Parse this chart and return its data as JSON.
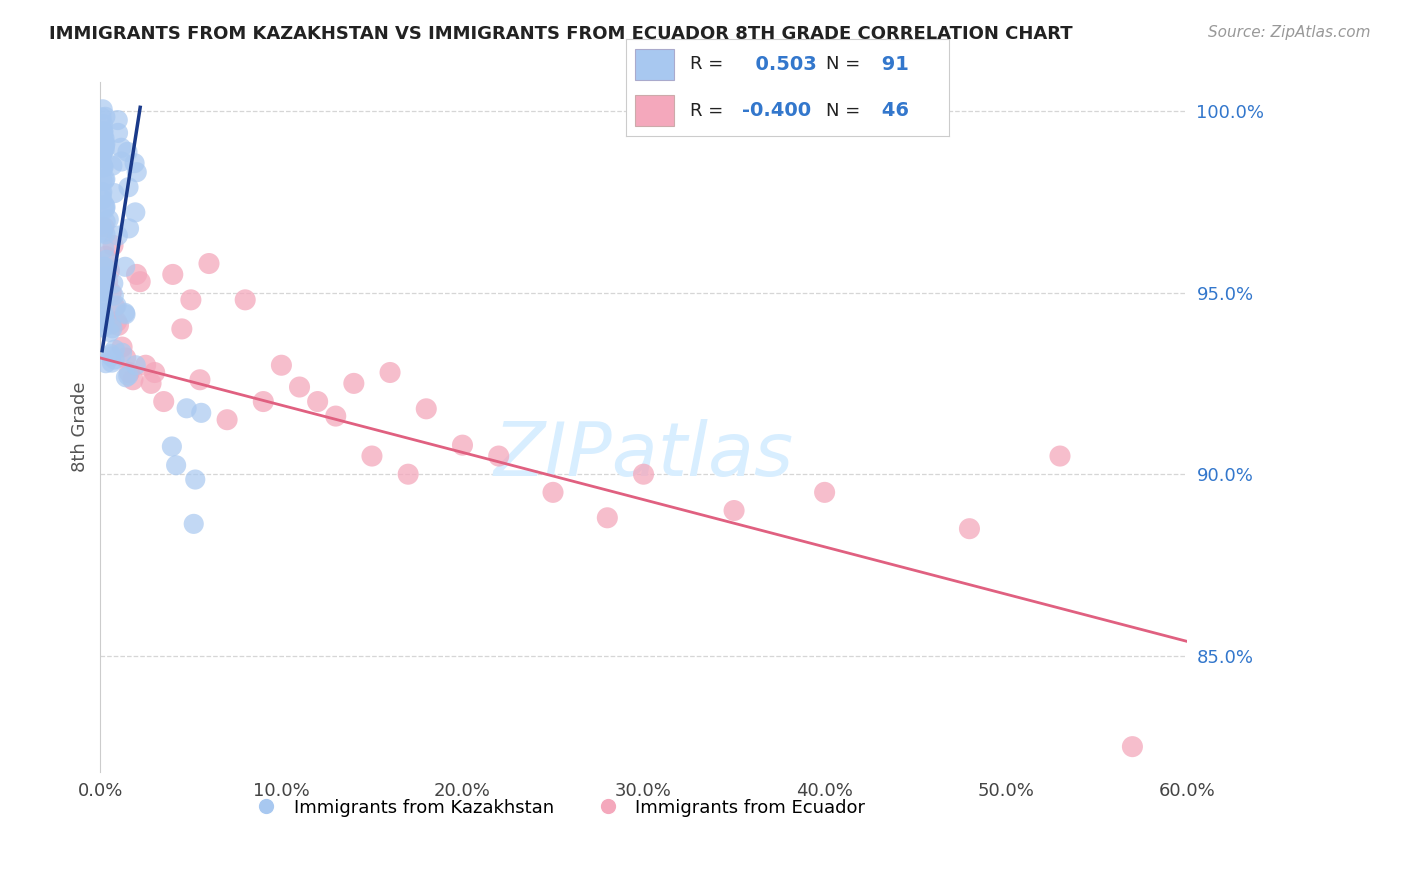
{
  "title": "IMMIGRANTS FROM KAZAKHSTAN VS IMMIGRANTS FROM ECUADOR 8TH GRADE CORRELATION CHART",
  "source": "Source: ZipAtlas.com",
  "ylabel": "8th Grade",
  "legend_label_kaz": "Immigrants from Kazakhstan",
  "legend_label_ecu": "Immigrants from Ecuador",
  "r_kaz": "0.503",
  "n_kaz": "91",
  "r_ecu": "-0.400",
  "n_ecu": "46",
  "color_kaz": "#A8C8F0",
  "color_ecu": "#F4A8BC",
  "line_color_kaz": "#1A3A8A",
  "line_color_ecu": "#E06080",
  "background": "#FFFFFF",
  "grid_color": "#CCCCCC",
  "x_min": 0.0,
  "x_max": 0.6,
  "y_min": 0.818,
  "y_max": 1.008,
  "ytick_vals": [
    0.85,
    0.9,
    0.95,
    1.0
  ],
  "xtick_vals": [
    0.0,
    0.1,
    0.2,
    0.3,
    0.4,
    0.5,
    0.6
  ],
  "watermark": "ZIPatlas",
  "watermark_color": "#D8EEFF",
  "kaz_line_x0": 0.001,
  "kaz_line_x1": 0.022,
  "kaz_line_y0": 0.934,
  "kaz_line_y1": 1.001,
  "ecu_line_x0": 0.0,
  "ecu_line_x1": 0.6,
  "ecu_line_y0": 0.932,
  "ecu_line_y1": 0.854
}
